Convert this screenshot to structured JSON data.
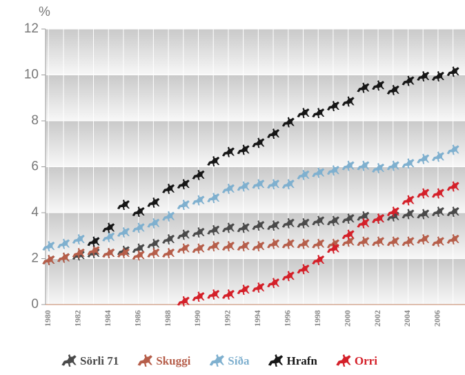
{
  "chart_data": {
    "type": "scatter",
    "y_label": "%",
    "x": [
      1980,
      1981,
      1982,
      1983,
      1984,
      1985,
      1986,
      1987,
      1988,
      1989,
      1990,
      1991,
      1992,
      1993,
      1994,
      1995,
      1996,
      1997,
      1998,
      1999,
      2000,
      2001,
      2002,
      2003,
      2004,
      2005,
      2006,
      2007
    ],
    "xlim": [
      1979.8,
      2007.8
    ],
    "xticks": [
      1980,
      1982,
      1984,
      1986,
      1988,
      1990,
      1992,
      1994,
      1996,
      1998,
      2000,
      2002,
      2004,
      2006
    ],
    "ylim": [
      0,
      12
    ],
    "yticks": [
      0,
      2,
      4,
      6,
      8,
      10,
      12
    ],
    "grid": true,
    "series": [
      {
        "name": "Sörli 71",
        "color": "#4a4a4a",
        "values": [
          1.9,
          2.0,
          2.1,
          2.2,
          2.2,
          2.3,
          2.4,
          2.6,
          2.8,
          3.0,
          3.1,
          3.2,
          3.3,
          3.3,
          3.4,
          3.4,
          3.5,
          3.5,
          3.6,
          3.6,
          3.7,
          3.8,
          3.7,
          3.8,
          3.9,
          3.9,
          4.0,
          4.0
        ]
      },
      {
        "name": "Skuggi",
        "color": "#b65e4a",
        "values": [
          1.9,
          2.0,
          2.2,
          2.3,
          2.2,
          2.2,
          2.1,
          2.2,
          2.2,
          2.4,
          2.4,
          2.5,
          2.5,
          2.5,
          2.5,
          2.6,
          2.6,
          2.6,
          2.6,
          2.6,
          2.7,
          2.7,
          2.7,
          2.7,
          2.7,
          2.8,
          2.7,
          2.8
        ]
      },
      {
        "name": "Síða",
        "color": "#7fb0cf",
        "values": [
          2.5,
          2.6,
          2.8,
          2.7,
          2.9,
          3.1,
          3.3,
          3.5,
          3.8,
          4.3,
          4.5,
          4.6,
          5.0,
          5.1,
          5.2,
          5.2,
          5.2,
          5.6,
          5.7,
          5.8,
          6.0,
          6.0,
          5.9,
          6.0,
          6.1,
          6.3,
          6.4,
          6.7
        ]
      },
      {
        "name": "Hrafn",
        "color": "#161616",
        "values": [
          null,
          null,
          null,
          2.7,
          3.3,
          4.3,
          4.0,
          4.4,
          5.0,
          5.2,
          5.6,
          6.2,
          6.6,
          6.7,
          7.0,
          7.4,
          7.9,
          8.3,
          8.3,
          8.6,
          8.8,
          9.4,
          9.5,
          9.3,
          9.7,
          9.9,
          9.9,
          10.1
        ]
      },
      {
        "name": "Orri",
        "color": "#d42029",
        "values": [
          null,
          null,
          null,
          null,
          null,
          null,
          null,
          null,
          null,
          0.1,
          0.3,
          0.4,
          0.4,
          0.6,
          0.7,
          0.9,
          1.2,
          1.5,
          1.9,
          2.4,
          3.0,
          3.5,
          3.7,
          4.0,
          4.5,
          4.8,
          4.8,
          5.1
        ]
      }
    ]
  }
}
